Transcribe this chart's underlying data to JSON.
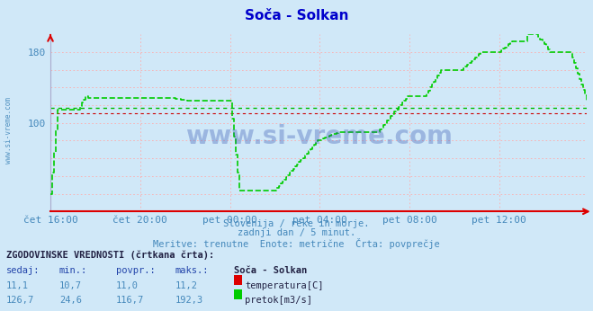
{
  "title": "Soča - Solkan",
  "bg_color": "#d0e8f8",
  "plot_bg_color": "#d0e8f8",
  "grid_color": "#ff9999",
  "axis_color": "#ff0000",
  "text_color": "#4488bb",
  "ylim": [
    0,
    200
  ],
  "n_points": 288,
  "temp_color": "#dd0000",
  "flow_color": "#00cc00",
  "flow_avg_color": "#00bb00",
  "temp_avg_color": "#cc0000",
  "watermark_text": "www.si-vreme.com",
  "subtitle1": "Slovenija / reke in morje.",
  "subtitle2": "zadnji dan / 5 minut.",
  "subtitle3": "Meritve: trenutne  Enote: metrične  Črta: povprečje",
  "legend_title": "ZGODOVINSKE VREDNOSTI (črtkana črta):",
  "legend_headers": [
    "sedaj:",
    "min.:",
    "povpr.:",
    "maks.:",
    "Soča - Solkan"
  ],
  "temp_stats": [
    11.1,
    10.7,
    11.0,
    11.2
  ],
  "flow_stats": [
    126.7,
    24.6,
    116.7,
    192.3
  ],
  "temp_label": "temperatura[C]",
  "flow_label": "pretok[m3/s]",
  "temp_icon_color": "#dd0000",
  "flow_icon_color": "#00cc00",
  "xlabel_labels": [
    "čet 16:00",
    "čet 20:00",
    "pet 00:00",
    "pet 04:00",
    "pet 08:00",
    "pet 12:00"
  ],
  "ytick_labels": [
    "100",
    "180"
  ],
  "ytick_vals": [
    100,
    180
  ],
  "temp_avg_val": 110.5,
  "flow_avg_val": 116.7
}
